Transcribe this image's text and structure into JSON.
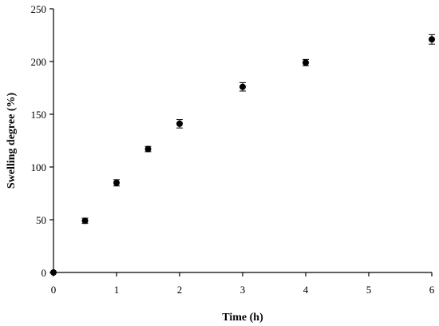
{
  "chart_data": {
    "type": "scatter",
    "xlabel": "Time (h)",
    "ylabel": "Swelling degree (%)",
    "xlim": [
      0,
      6
    ],
    "ylim": [
      0,
      250
    ],
    "x_ticks": [
      "0",
      "1",
      "2",
      "3",
      "4",
      "5",
      "6"
    ],
    "y_ticks": [
      "0",
      "50",
      "100",
      "150",
      "200",
      "250"
    ],
    "grid": false,
    "series": [
      {
        "x": [
          0,
          0.5,
          1,
          1.5,
          2,
          3,
          4,
          6
        ],
        "y": [
          0,
          49,
          85,
          117,
          141,
          176,
          199,
          221
        ],
        "error": [
          0,
          2.5,
          3,
          2.5,
          4,
          4,
          3,
          4.5
        ]
      }
    ],
    "marker_color": "#000000"
  }
}
